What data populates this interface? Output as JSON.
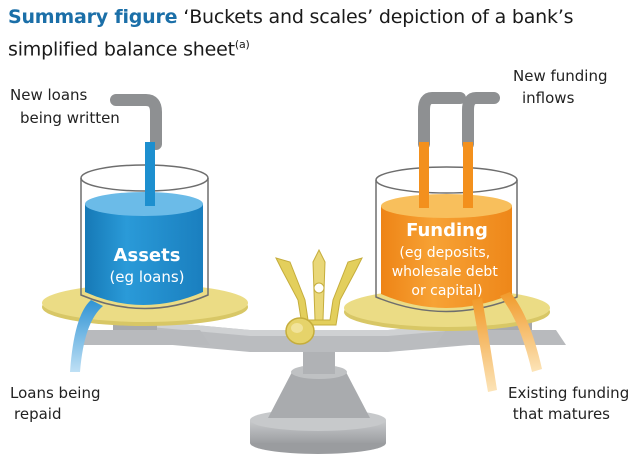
{
  "title": {
    "lead": "Summary figure",
    "text": "‘Buckets and scales’ depiction of a bank’s simplified balance sheet",
    "note_marker": "(a)"
  },
  "assets_bucket": {
    "heading": "Assets",
    "detail": [
      "(eg loans)"
    ]
  },
  "funding_bucket": {
    "heading": "Funding",
    "detail": [
      "(eg deposits,",
      "wholesale debt",
      "or capital)"
    ]
  },
  "labels": {
    "new_loans": [
      "New loans",
      "being written"
    ],
    "new_funding": [
      "New funding",
      "inflows"
    ],
    "loans_repaid": [
      "Loans being",
      "repaid"
    ],
    "existing_funding": [
      "Existing funding",
      "that matures"
    ]
  },
  "colors": {
    "assets": "#1d8fcf",
    "funding": "#f3901d",
    "plate": "#e8d77a",
    "scale": "#b4b6b8",
    "pivot": "#e3cf5c",
    "pipe": "#8e9092",
    "title_lead": "#1b6fa8"
  }
}
